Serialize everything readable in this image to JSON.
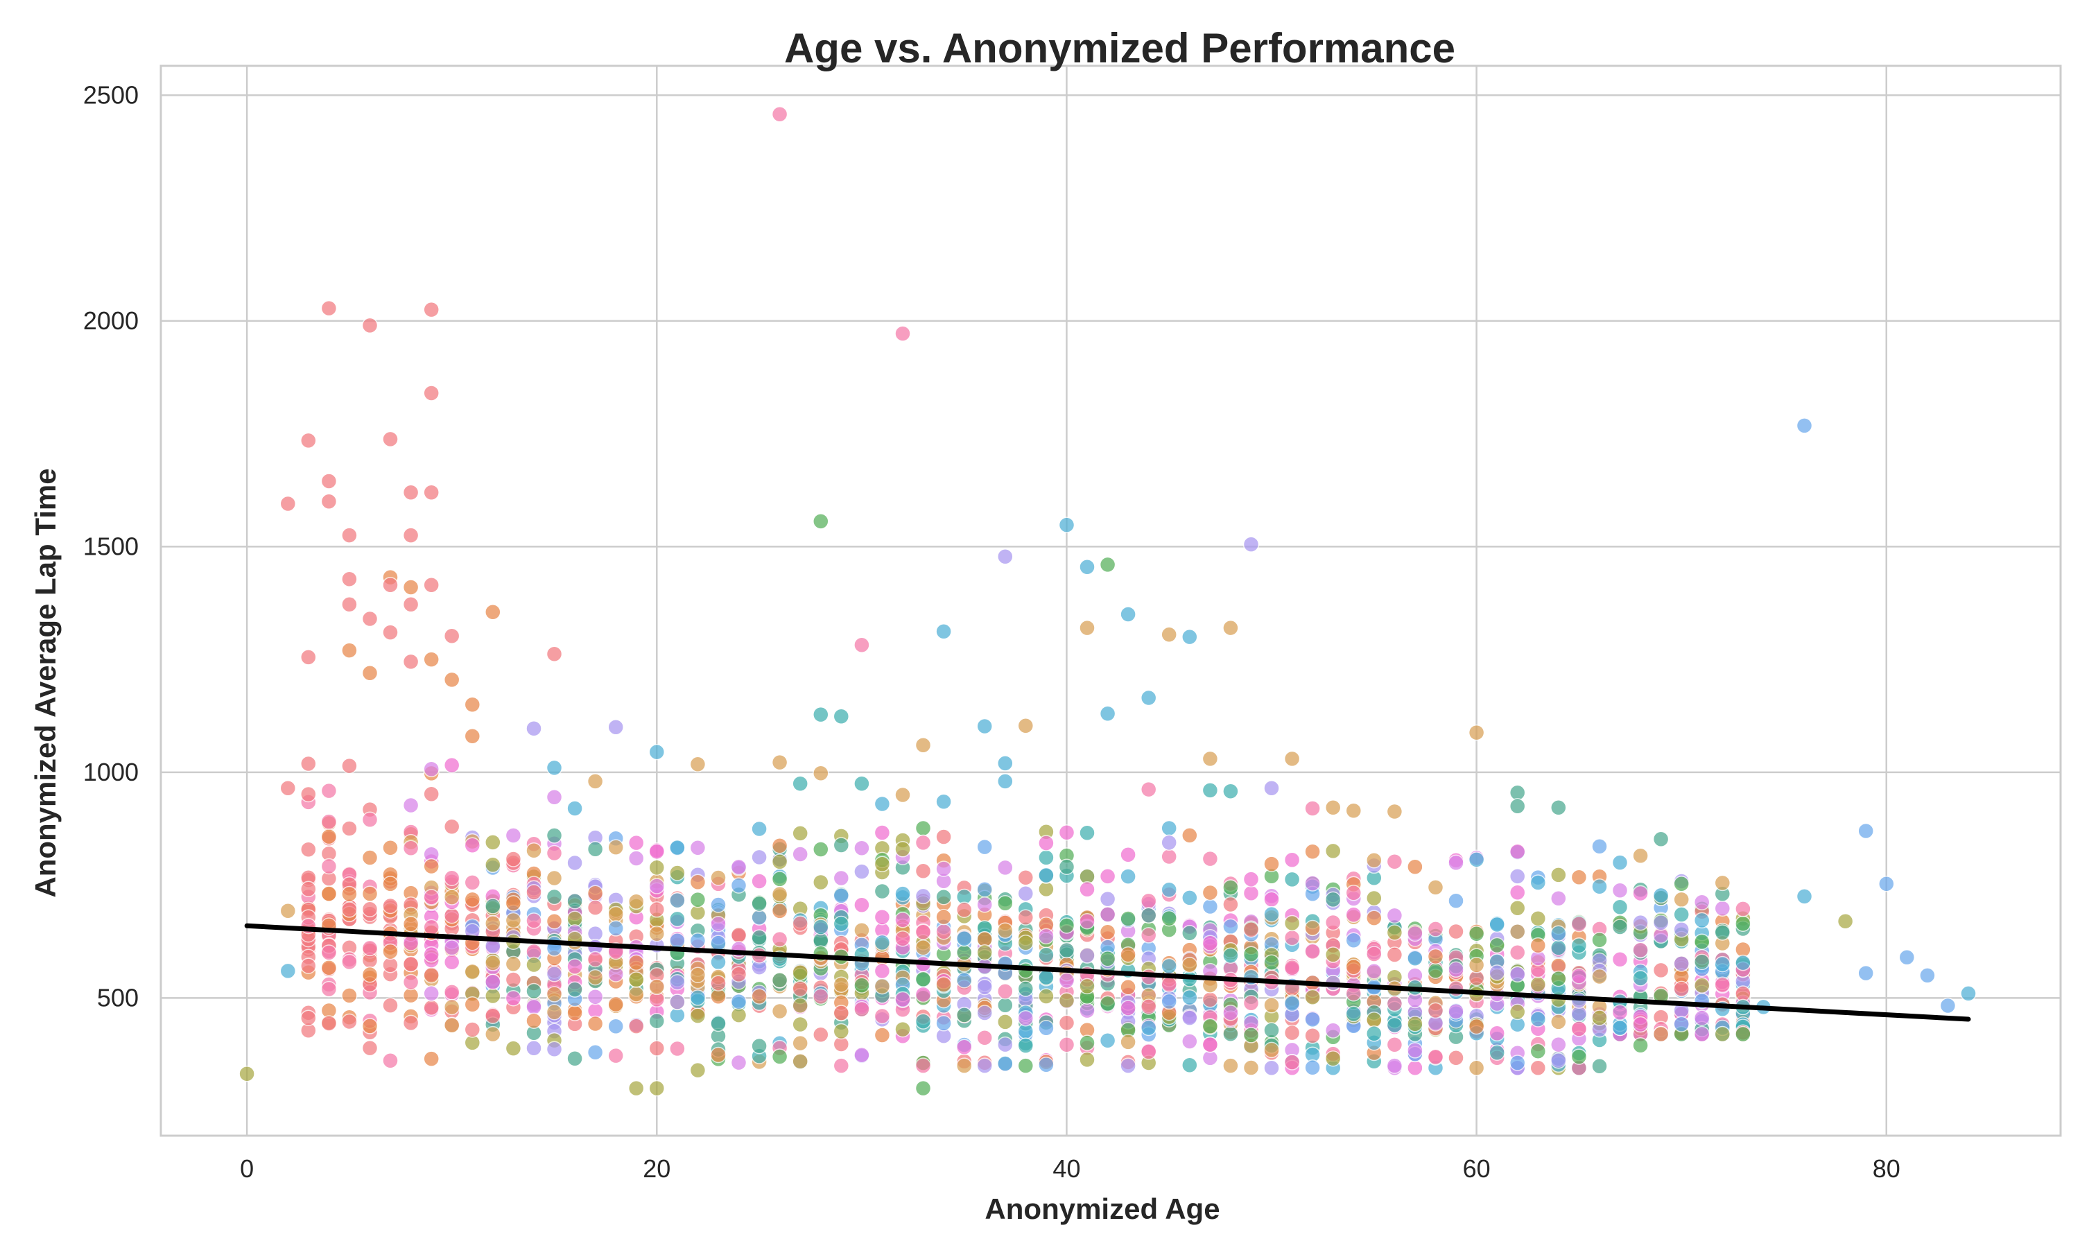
{
  "chart_data": {
    "type": "scatter",
    "title": "Age vs. Anonymized Performance",
    "xlabel": "Anonymized Age",
    "ylabel": "Anonymized Average Lap Time",
    "xlim": [
      -4.2,
      88.5
    ],
    "ylim": [
      195,
      2565
    ],
    "xticks": [
      "0",
      "20",
      "40",
      "60",
      "80"
    ],
    "yticks": [
      "500",
      "1000",
      "1500",
      "2000",
      "2500"
    ],
    "xtick_values": [
      0,
      20,
      40,
      60,
      80
    ],
    "ytick_values": [
      500,
      1000,
      1500,
      2000,
      2500
    ],
    "grid": true,
    "legend": "none",
    "trendline": {
      "x": [
        0,
        84
      ],
      "y": [
        660,
        453
      ],
      "color": "#000000"
    },
    "palette": [
      "#f27a7f",
      "#e8874a",
      "#d9a055",
      "#a8a844",
      "#55b05a",
      "#4aa88f",
      "#3fb0b0",
      "#4fb0d6",
      "#6aa8ec",
      "#a897f0",
      "#d882e8",
      "#f06ed0",
      "#f57aa8"
    ],
    "density_bands": [
      {
        "x_from": 3,
        "x_to": 10,
        "y_lo": 360,
        "y_hi": 1020
      },
      {
        "x_from": 11,
        "x_to": 24,
        "y_lo": 350,
        "y_hi": 860
      },
      {
        "x_from": 25,
        "x_to": 48,
        "y_lo": 350,
        "y_hi": 880
      },
      {
        "x_from": 49,
        "x_to": 66,
        "y_lo": 345,
        "y_hi": 830
      },
      {
        "x_from": 67,
        "x_to": 73,
        "y_lo": 420,
        "y_hi": 760
      }
    ],
    "outliers": [
      {
        "x": 0,
        "y": 332,
        "c": 3
      },
      {
        "x": 2,
        "y": 1595,
        "c": 0
      },
      {
        "x": 2,
        "y": 965,
        "c": 0
      },
      {
        "x": 2,
        "y": 560,
        "c": 7
      },
      {
        "x": 2,
        "y": 693,
        "c": 2
      },
      {
        "x": 3,
        "y": 1735,
        "c": 0
      },
      {
        "x": 3,
        "y": 1255,
        "c": 0
      },
      {
        "x": 4,
        "y": 2028,
        "c": 0
      },
      {
        "x": 4,
        "y": 1645,
        "c": 0
      },
      {
        "x": 4,
        "y": 1600,
        "c": 0
      },
      {
        "x": 5,
        "y": 1525,
        "c": 0
      },
      {
        "x": 5,
        "y": 1428,
        "c": 0
      },
      {
        "x": 5,
        "y": 1372,
        "c": 0
      },
      {
        "x": 5,
        "y": 1270,
        "c": 1
      },
      {
        "x": 6,
        "y": 1990,
        "c": 0
      },
      {
        "x": 6,
        "y": 1340,
        "c": 0
      },
      {
        "x": 6,
        "y": 1220,
        "c": 1
      },
      {
        "x": 7,
        "y": 1738,
        "c": 0
      },
      {
        "x": 7,
        "y": 1432,
        "c": 1
      },
      {
        "x": 7,
        "y": 1415,
        "c": 0
      },
      {
        "x": 7,
        "y": 1310,
        "c": 0
      },
      {
        "x": 8,
        "y": 1620,
        "c": 0
      },
      {
        "x": 8,
        "y": 1525,
        "c": 0
      },
      {
        "x": 8,
        "y": 1410,
        "c": 1
      },
      {
        "x": 8,
        "y": 1372,
        "c": 0
      },
      {
        "x": 8,
        "y": 1245,
        "c": 0
      },
      {
        "x": 9,
        "y": 2025,
        "c": 0
      },
      {
        "x": 9,
        "y": 1840,
        "c": 0
      },
      {
        "x": 9,
        "y": 1620,
        "c": 0
      },
      {
        "x": 9,
        "y": 1415,
        "c": 0
      },
      {
        "x": 9,
        "y": 1250,
        "c": 1
      },
      {
        "x": 10,
        "y": 1302,
        "c": 0
      },
      {
        "x": 10,
        "y": 1205,
        "c": 1
      },
      {
        "x": 11,
        "y": 1150,
        "c": 1
      },
      {
        "x": 11,
        "y": 1080,
        "c": 1
      },
      {
        "x": 12,
        "y": 1355,
        "c": 1
      },
      {
        "x": 14,
        "y": 1097,
        "c": 9
      },
      {
        "x": 15,
        "y": 1262,
        "c": 0
      },
      {
        "x": 15,
        "y": 1010,
        "c": 7
      },
      {
        "x": 15,
        "y": 945,
        "c": 10
      },
      {
        "x": 16,
        "y": 920,
        "c": 7
      },
      {
        "x": 17,
        "y": 980,
        "c": 2
      },
      {
        "x": 18,
        "y": 1100,
        "c": 9
      },
      {
        "x": 19,
        "y": 300,
        "c": 3
      },
      {
        "x": 20,
        "y": 1045,
        "c": 7
      },
      {
        "x": 20,
        "y": 300,
        "c": 3
      },
      {
        "x": 22,
        "y": 1018,
        "c": 2
      },
      {
        "x": 22,
        "y": 340,
        "c": 3
      },
      {
        "x": 26,
        "y": 2458,
        "c": 12
      },
      {
        "x": 26,
        "y": 1022,
        "c": 2
      },
      {
        "x": 27,
        "y": 975,
        "c": 6
      },
      {
        "x": 28,
        "y": 1556,
        "c": 4
      },
      {
        "x": 28,
        "y": 1128,
        "c": 6
      },
      {
        "x": 28,
        "y": 998,
        "c": 2
      },
      {
        "x": 29,
        "y": 1124,
        "c": 6
      },
      {
        "x": 30,
        "y": 1282,
        "c": 12
      },
      {
        "x": 30,
        "y": 975,
        "c": 6
      },
      {
        "x": 31,
        "y": 930,
        "c": 7
      },
      {
        "x": 32,
        "y": 1972,
        "c": 12
      },
      {
        "x": 32,
        "y": 950,
        "c": 2
      },
      {
        "x": 33,
        "y": 1060,
        "c": 2
      },
      {
        "x": 33,
        "y": 300,
        "c": 4
      },
      {
        "x": 34,
        "y": 1312,
        "c": 7
      },
      {
        "x": 34,
        "y": 935,
        "c": 7
      },
      {
        "x": 36,
        "y": 1102,
        "c": 7
      },
      {
        "x": 37,
        "y": 1478,
        "c": 9
      },
      {
        "x": 37,
        "y": 1020,
        "c": 7
      },
      {
        "x": 37,
        "y": 980,
        "c": 7
      },
      {
        "x": 38,
        "y": 1103,
        "c": 2
      },
      {
        "x": 40,
        "y": 1548,
        "c": 7
      },
      {
        "x": 41,
        "y": 1455,
        "c": 7
      },
      {
        "x": 41,
        "y": 1320,
        "c": 2
      },
      {
        "x": 42,
        "y": 1460,
        "c": 4
      },
      {
        "x": 42,
        "y": 1130,
        "c": 7
      },
      {
        "x": 43,
        "y": 1350,
        "c": 7
      },
      {
        "x": 44,
        "y": 1165,
        "c": 7
      },
      {
        "x": 44,
        "y": 962,
        "c": 12
      },
      {
        "x": 45,
        "y": 1305,
        "c": 2
      },
      {
        "x": 46,
        "y": 1300,
        "c": 7
      },
      {
        "x": 47,
        "y": 1030,
        "c": 2
      },
      {
        "x": 47,
        "y": 960,
        "c": 6
      },
      {
        "x": 48,
        "y": 1320,
        "c": 2
      },
      {
        "x": 48,
        "y": 958,
        "c": 6
      },
      {
        "x": 49,
        "y": 1505,
        "c": 9
      },
      {
        "x": 50,
        "y": 965,
        "c": 9
      },
      {
        "x": 51,
        "y": 1030,
        "c": 2
      },
      {
        "x": 52,
        "y": 920,
        "c": 12
      },
      {
        "x": 53,
        "y": 922,
        "c": 2
      },
      {
        "x": 54,
        "y": 915,
        "c": 2
      },
      {
        "x": 56,
        "y": 913,
        "c": 2
      },
      {
        "x": 60,
        "y": 1088,
        "c": 2
      },
      {
        "x": 62,
        "y": 955,
        "c": 5
      },
      {
        "x": 62,
        "y": 925,
        "c": 5
      },
      {
        "x": 64,
        "y": 922,
        "c": 5
      },
      {
        "x": 65,
        "y": 370,
        "c": 4
      },
      {
        "x": 66,
        "y": 836,
        "c": 8
      },
      {
        "x": 67,
        "y": 800,
        "c": 7
      },
      {
        "x": 68,
        "y": 815,
        "c": 2
      },
      {
        "x": 68,
        "y": 395,
        "c": 4
      },
      {
        "x": 69,
        "y": 852,
        "c": 5
      },
      {
        "x": 70,
        "y": 685,
        "c": 6
      },
      {
        "x": 71,
        "y": 672,
        "c": 7
      },
      {
        "x": 71,
        "y": 580,
        "c": 5
      },
      {
        "x": 72,
        "y": 755,
        "c": 2
      },
      {
        "x": 72,
        "y": 645,
        "c": 5
      },
      {
        "x": 72,
        "y": 575,
        "c": 7
      },
      {
        "x": 73,
        "y": 578,
        "c": 7
      },
      {
        "x": 73,
        "y": 480,
        "c": 6
      },
      {
        "x": 74,
        "y": 480,
        "c": 7
      },
      {
        "x": 76,
        "y": 1768,
        "c": 8
      },
      {
        "x": 76,
        "y": 725,
        "c": 7
      },
      {
        "x": 78,
        "y": 670,
        "c": 3
      },
      {
        "x": 79,
        "y": 870,
        "c": 8
      },
      {
        "x": 79,
        "y": 555,
        "c": 8
      },
      {
        "x": 80,
        "y": 753,
        "c": 8
      },
      {
        "x": 81,
        "y": 590,
        "c": 8
      },
      {
        "x": 82,
        "y": 550,
        "c": 8
      },
      {
        "x": 83,
        "y": 483,
        "c": 8
      },
      {
        "x": 84,
        "y": 510,
        "c": 7
      }
    ]
  }
}
